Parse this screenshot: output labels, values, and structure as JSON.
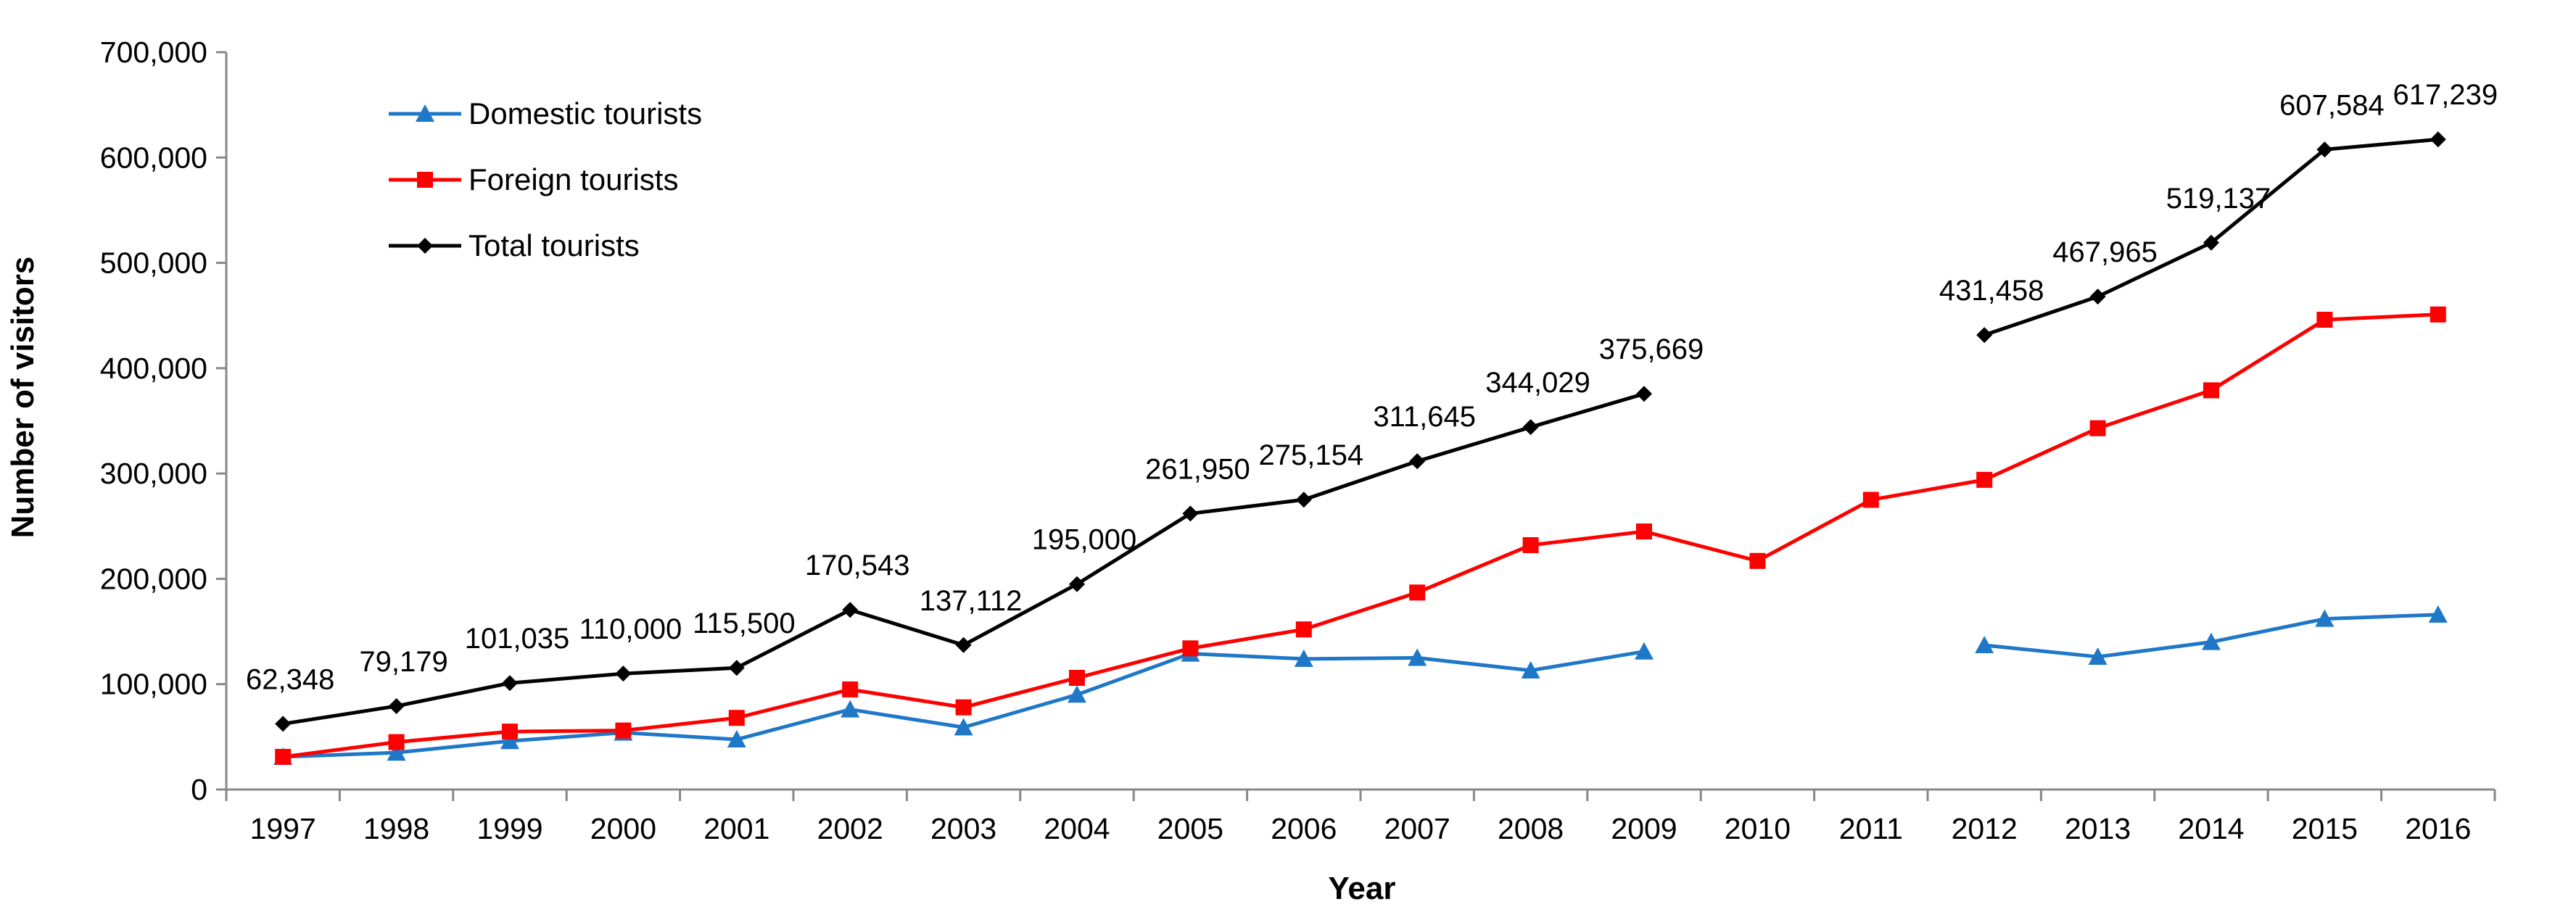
{
  "chart_data": {
    "type": "line",
    "title": "",
    "xlabel": "Year",
    "ylabel": "Number of visitors",
    "ylim": [
      0,
      700000
    ],
    "yticks": [
      0,
      100000,
      200000,
      300000,
      400000,
      500000,
      600000,
      700000
    ],
    "ytick_labels": [
      "0",
      "100,000",
      "200,000",
      "300,000",
      "400,000",
      "500,000",
      "600,000",
      "700,000"
    ],
    "categories": [
      "1997",
      "1998",
      "1999",
      "2000",
      "2001",
      "2002",
      "2003",
      "2004",
      "2005",
      "2006",
      "2007",
      "2008",
      "2009",
      "2010",
      "2011",
      "2012",
      "2013",
      "2014",
      "2015",
      "2016"
    ],
    "grid": false,
    "legend_position": "top-left",
    "series": [
      {
        "name": "Domestic tourists",
        "color": "#1f77c8",
        "marker": "triangle",
        "values": [
          31000,
          35000,
          46000,
          54000,
          47500,
          76000,
          59000,
          90000,
          129000,
          124000,
          125000,
          113000,
          131000,
          null,
          null,
          137000,
          126000,
          140000,
          162000,
          166000
        ]
      },
      {
        "name": "Foreign tourists",
        "color": "#ff0000",
        "marker": "square",
        "values": [
          31000,
          45000,
          55000,
          56000,
          68000,
          95000,
          78000,
          106000,
          134000,
          152000,
          187000,
          232000,
          245000,
          217000,
          275000,
          294000,
          343000,
          379000,
          446000,
          451000
        ]
      },
      {
        "name": "Total tourists",
        "color": "#000000",
        "marker": "diamond",
        "values": [
          62348,
          79179,
          101035,
          110000,
          115500,
          170543,
          137112,
          195000,
          261950,
          275154,
          311645,
          344029,
          375669,
          null,
          null,
          431458,
          467965,
          519137,
          607584,
          617239
        ],
        "labels": [
          "62,348",
          "79,179",
          "101,035",
          "110,000",
          "115,500",
          "170,543",
          "137,112",
          "195,000",
          "261,950",
          "275,154",
          "311,645",
          "344,029",
          "375,669",
          null,
          null,
          "431,458",
          "467,965",
          "519,137",
          "607,584",
          "617,239"
        ]
      }
    ]
  }
}
